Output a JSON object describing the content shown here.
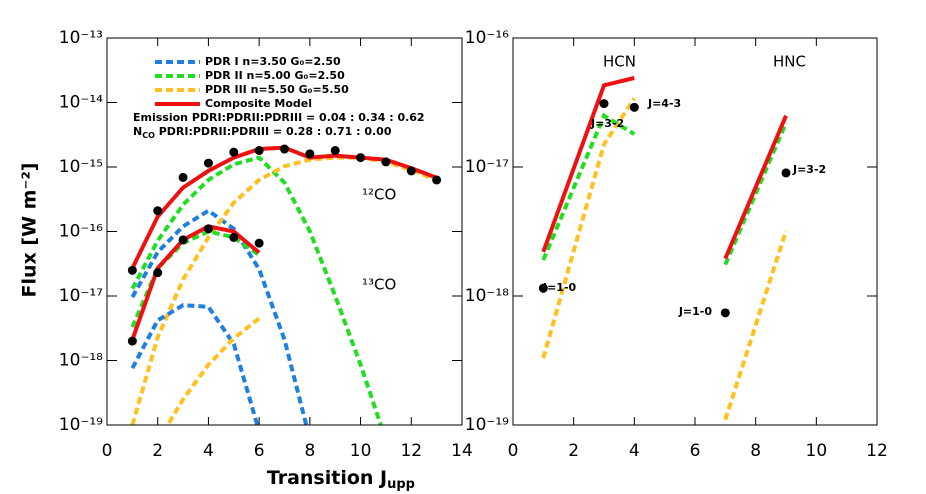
{
  "chart_data": [
    {
      "type": "line",
      "log_y": true,
      "xlim": [
        0,
        14
      ],
      "xticks": [
        0,
        2,
        4,
        6,
        8,
        10,
        12,
        14
      ],
      "ylim": [
        1e-19,
        1e-13
      ],
      "yticks": [
        {
          "value": 1e-19,
          "label": "10⁻¹⁹"
        },
        {
          "value": 1e-18,
          "label": "10⁻¹⁸"
        },
        {
          "value": 1e-17,
          "label": "10⁻¹⁷"
        },
        {
          "value": 1e-16,
          "label": "10⁻¹⁶"
        },
        {
          "value": 1e-15,
          "label": "10⁻¹⁵"
        },
        {
          "value": 1e-14,
          "label": "10⁻¹⁴"
        },
        {
          "value": 1e-13,
          "label": "10⁻¹³"
        }
      ],
      "ylabel": "Flux [W m⁻²]",
      "xlabel": "Transition J",
      "xlabel_sub": "upp",
      "emission_note": "Emission PDRI:PDRII:PDRIII = 0.04 : 0.34 : 0.62",
      "ncol_note": {
        "main": "N",
        "sub": "CO",
        "rest": " PDRI:PDRII:PDRIII = 0.28 : 0.71 : 0.00"
      },
      "annotations": [
        "¹²CO",
        "¹³CO"
      ],
      "series": [
        {
          "name": "PDR I n=3.50 G₀=2.50",
          "color": "#1e7fe0",
          "dash": true,
          "x": [
            1,
            2,
            3,
            4,
            5,
            6,
            7,
            8
          ],
          "values": [
            9.6e-18,
            4.8e-17,
            1.2e-16,
            2.1e-16,
            1.1e-16,
            2.6e-17,
            2.1e-18,
            6e-20
          ]
        },
        {
          "name": "PDR II n=5.00 G₀=2.50",
          "color": "#22dd22",
          "dash": true,
          "x": [
            1,
            2,
            3,
            4,
            5,
            6,
            7,
            8,
            9,
            10,
            11
          ],
          "values": [
            1.3e-17,
            7.2e-17,
            2.6e-16,
            6.3e-16,
            1.1e-15,
            1.4e-15,
            5.7e-16,
            1e-16,
            1e-17,
            8.6e-19,
            5.8e-20
          ]
        },
        {
          "name": "PDR III n=5.50 G₀=5.50",
          "color": "#ffc020",
          "dash": true,
          "x": [
            1,
            2,
            3,
            4,
            5,
            6,
            7,
            8,
            9,
            10,
            11,
            12,
            13
          ],
          "values": [
            1e-19,
            2.3e-18,
            1.8e-17,
            8.1e-17,
            2.8e-16,
            6.3e-16,
            1.03e-15,
            1.3e-15,
            1.4e-15,
            1.4e-15,
            1.2e-15,
            9e-16,
            6.3e-16
          ]
        },
        {
          "name": "Composite Model",
          "color": "#ee1111",
          "dash": false,
          "x": [
            1,
            2,
            3,
            4,
            5,
            6,
            7,
            8,
            9,
            10,
            11,
            12,
            13
          ],
          "values": [
            2.7e-17,
            1.7e-16,
            4.8e-16,
            8.7e-16,
            1.4e-15,
            1.9e-15,
            2e-15,
            1.4e-15,
            1.5e-15,
            1.4e-15,
            1.3e-15,
            9.6e-16,
            6.8e-16
          ]
        },
        {
          "color": "#1e7fe0",
          "dash": true,
          "x": [
            1,
            2,
            3,
            4,
            5,
            6
          ],
          "values": [
            7.6e-19,
            4.2e-18,
            7.2e-18,
            6.8e-18,
            1.8e-18,
            8e-20
          ]
        },
        {
          "color": "#22dd22",
          "dash": true,
          "x": [
            1,
            2,
            3,
            4,
            5,
            6
          ],
          "values": [
            3.3e-18,
            2.7e-17,
            6.6e-17,
            1e-16,
            8.1e-17,
            4.3e-17
          ]
        },
        {
          "color": "#ffc020",
          "dash": true,
          "x": [
            2,
            3,
            4,
            5,
            6
          ],
          "values": [
            5.5e-20,
            2.5e-19,
            8.6e-19,
            2.2e-18,
            4.5e-18
          ]
        },
        {
          "color": "#ee1111",
          "dash": false,
          "x": [
            1,
            2,
            3,
            4,
            5,
            6
          ],
          "values": [
            2.1e-18,
            2.7e-17,
            7.4e-17,
            1.2e-16,
            1e-16,
            4.7e-17
          ]
        },
        {
          "marker": true,
          "color": "#000000",
          "x": [
            1,
            2,
            3,
            4,
            5,
            6,
            7,
            8,
            9,
            10,
            11,
            12,
            13
          ],
          "values": [
            2.5e-17,
            2.1e-16,
            6.9e-16,
            1.15e-15,
            1.7e-15,
            1.8e-15,
            1.9e-15,
            1.6e-15,
            1.8e-15,
            1.4e-15,
            1.2e-15,
            8.7e-16,
            6.3e-16
          ]
        },
        {
          "marker": true,
          "color": "#000000",
          "x": [
            1,
            2,
            3,
            4,
            5,
            6
          ],
          "values": [
            2e-18,
            2.3e-17,
            7.4e-17,
            1.1e-16,
            8.1e-17,
            6.6e-17
          ]
        }
      ]
    },
    {
      "type": "line",
      "log_y": true,
      "xlim": [
        0,
        12
      ],
      "xticks": [
        0,
        2,
        4,
        6,
        8,
        10,
        12
      ],
      "ylim": [
        1e-19,
        1e-16
      ],
      "yticks": [
        {
          "value": 1e-19,
          "label": "10⁻¹⁹"
        },
        {
          "value": 1e-18,
          "label": "10⁻¹⁸"
        },
        {
          "value": 1e-17,
          "label": "10⁻¹⁷"
        },
        {
          "value": 1e-16,
          "label": "10⁻¹⁶"
        }
      ],
      "annotations": [
        "HCN",
        "HNC"
      ],
      "point_labels": [
        "J=1-0",
        "J=3-2",
        "J=4-3",
        "J=1-0",
        "J=3-2"
      ],
      "series": [
        {
          "color": "#ffc020",
          "dash": true,
          "x": [
            1,
            3,
            4
          ],
          "values": [
            3.3e-19,
            1.5e-17,
            3.4e-17
          ]
        },
        {
          "color": "#22dd22",
          "dash": true,
          "x": [
            1,
            3,
            4
          ],
          "values": [
            1.9e-18,
            2.5e-17,
            1.8e-17
          ]
        },
        {
          "color": "#ee1111",
          "dash": false,
          "x": [
            1,
            3,
            4
          ],
          "values": [
            2.2e-18,
            4.3e-17,
            4.9e-17
          ]
        },
        {
          "color": "#ffc020",
          "dash": true,
          "x": [
            7,
            9
          ],
          "values": [
            1.1e-19,
            3.2e-18
          ]
        },
        {
          "color": "#22dd22",
          "dash": true,
          "x": [
            7,
            9
          ],
          "values": [
            1.75e-18,
            2.2e-17
          ]
        },
        {
          "color": "#ee1111",
          "dash": false,
          "x": [
            7,
            9
          ],
          "values": [
            1.95e-18,
            2.5e-17
          ]
        },
        {
          "marker": true,
          "color": "#000000",
          "x": [
            1,
            3,
            4,
            7,
            9
          ],
          "values": [
            1.15e-18,
            3.1e-17,
            2.9e-17,
            7.4e-19,
            9e-18
          ]
        }
      ]
    }
  ]
}
